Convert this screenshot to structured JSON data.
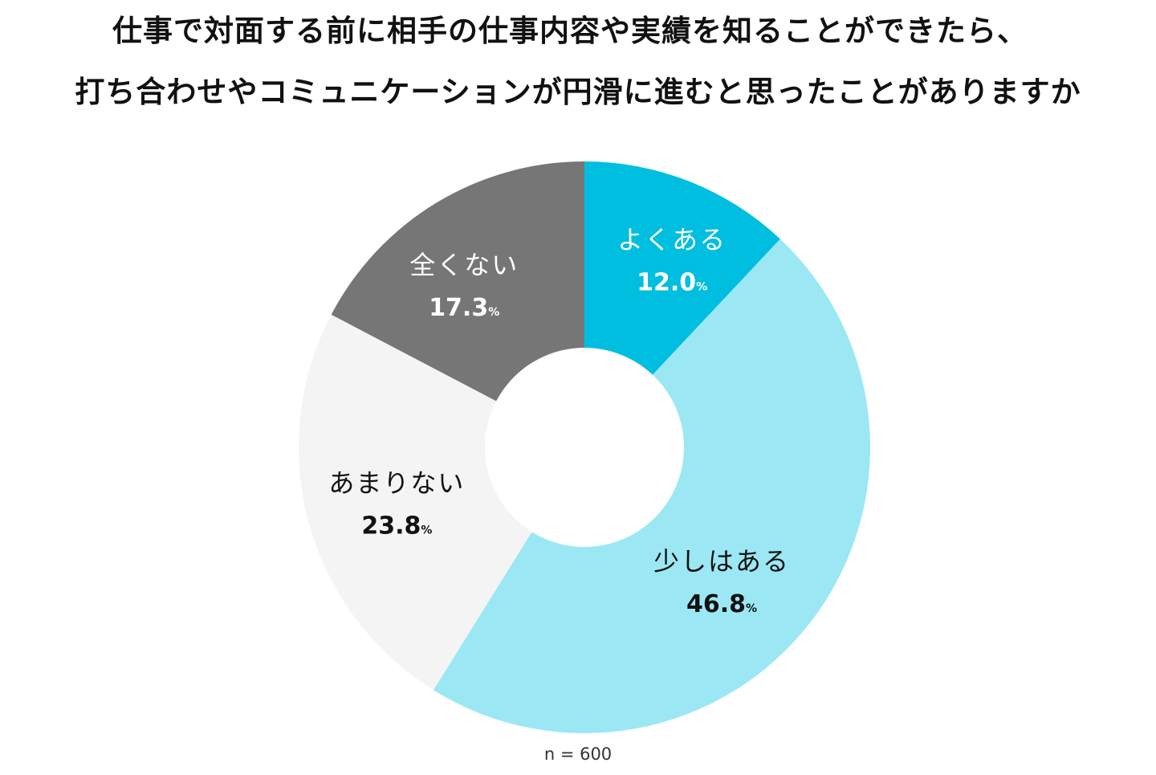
{
  "title_lines": [
    "仕事で対面する前に相手の仕事内容や実績を知ることができたら、",
    "打ち合わせやコミュニケーションが円滑に進むと思ったことがありますか"
  ],
  "sample_note": "n = 600",
  "chart_data": {
    "type": "pie",
    "donut": true,
    "start": "12 o'clock",
    "direction": "clockwise",
    "unit": "%",
    "legend": "none",
    "slices": [
      {
        "label": "よくある",
        "value": 12.0,
        "display": "12.0",
        "color": "#00BEE0",
        "text_color": "#ffffff"
      },
      {
        "label": "少しはある",
        "value": 46.8,
        "display": "46.8",
        "color": "#9BE8F4",
        "text_color": "#111111"
      },
      {
        "label": "あまりない",
        "value": 23.8,
        "display": "23.8",
        "color": "#F4F4F4",
        "text_color": "#111111"
      },
      {
        "label": "全くない",
        "value": 17.3,
        "display": "17.3",
        "color": "#767676",
        "text_color": "#ffffff"
      }
    ]
  }
}
